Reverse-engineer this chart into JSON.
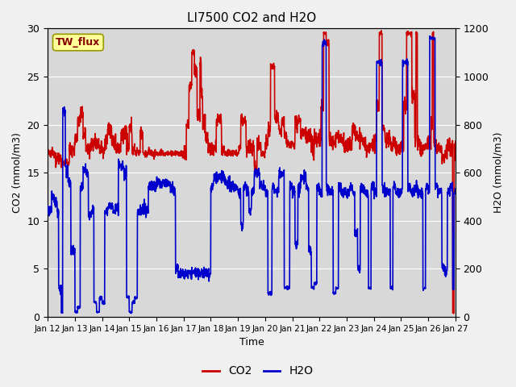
{
  "title": "LI7500 CO2 and H2O",
  "xlabel": "Time",
  "ylabel_left": "CO2 (mmol/m3)",
  "ylabel_right": "H2O (mmol/m3)",
  "xlim": [
    0,
    15
  ],
  "ylim_left": [
    0,
    30
  ],
  "ylim_right": [
    0,
    1200
  ],
  "yticks_left": [
    0,
    5,
    10,
    15,
    20,
    25,
    30
  ],
  "yticks_right": [
    0,
    200,
    400,
    600,
    800,
    1000,
    1200
  ],
  "xtick_labels": [
    "Jan 12",
    "Jan 13",
    "Jan 14",
    "Jan 15",
    "Jan 16",
    "Jan 17",
    "Jan 18",
    "Jan 19",
    "Jan 20",
    "Jan 21",
    "Jan 22",
    "Jan 23",
    "Jan 24",
    "Jan 25",
    "Jan 26",
    "Jan 27"
  ],
  "co2_color": "#cc0000",
  "h2o_color": "#0000cc",
  "fig_facecolor": "#f0f0f0",
  "plot_bg_color": "#d8d8d8",
  "label_box_text": "TW_flux",
  "label_box_facecolor": "#ffff99",
  "label_box_edgecolor": "#999900",
  "label_box_textcolor": "#880000",
  "legend_co2": "CO2",
  "legend_h2o": "H2O",
  "line_width": 1.2,
  "h2o_scale": 40,
  "figsize": [
    6.4,
    4.8
  ],
  "dpi": 100
}
